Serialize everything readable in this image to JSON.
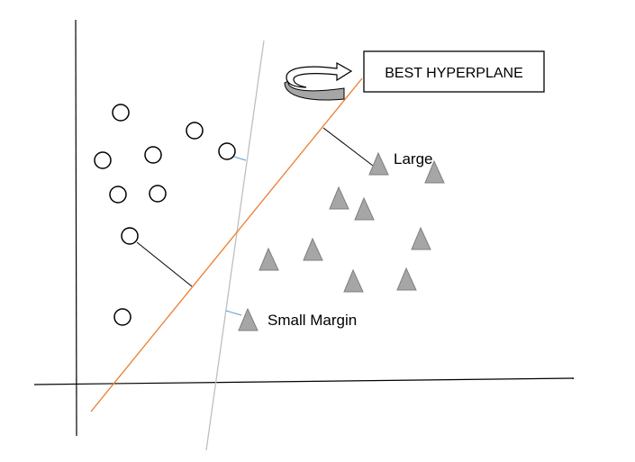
{
  "labels": {
    "best_hyperplane": "BEST HYPERPLANE",
    "large": "Large",
    "small_margin": "Small Margin"
  },
  "colors": {
    "axis": "#000000",
    "best_hyperplane": "#ED7D31",
    "other_hyperplane": "#BFBFBF",
    "small_margin_line": "#5B9BD5",
    "large_margin_line": "#000000",
    "circle_stroke": "#000000",
    "triangle_fill": "#A6A6A6",
    "triangle_stroke": "#7F7F7F",
    "arrow_fill": "#ffffff",
    "arrow_shade": "#A6A6A6"
  },
  "icons": {
    "circle_class": "circle-marker",
    "triangle_class": "triangle-marker",
    "arrow": "curved-arrow-icon"
  }
}
